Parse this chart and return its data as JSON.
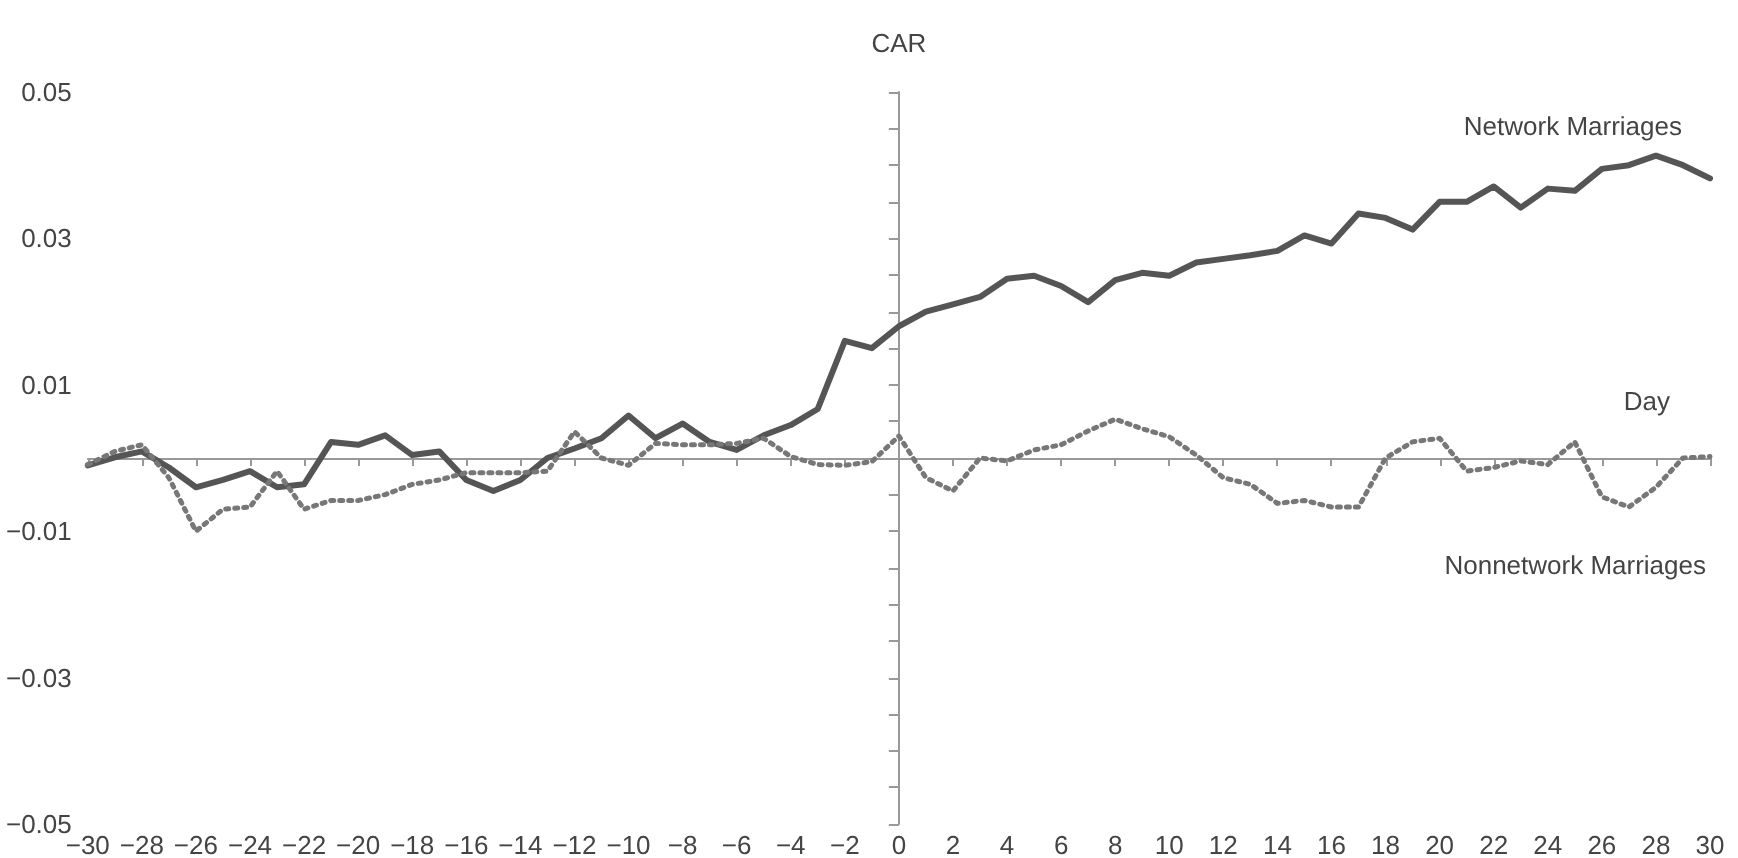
{
  "chart_data": {
    "type": "line",
    "xlabel": "Day",
    "ylabel": "CAR",
    "x": [
      -30,
      -29,
      -28,
      -27,
      -26,
      -25,
      -24,
      -23,
      -22,
      -21,
      -20,
      -19,
      -18,
      -17,
      -16,
      -15,
      -14,
      -13,
      -12,
      -11,
      -10,
      -9,
      -8,
      -7,
      -6,
      -5,
      -4,
      -3,
      -2,
      -1,
      0,
      1,
      2,
      3,
      4,
      5,
      6,
      7,
      8,
      9,
      10,
      11,
      12,
      13,
      14,
      15,
      16,
      17,
      18,
      19,
      20,
      21,
      22,
      23,
      24,
      25,
      26,
      27,
      28,
      29,
      30
    ],
    "series": [
      {
        "name": "Network Marriages",
        "color": "#555555",
        "line_style": "solid",
        "values": [
          -0.001,
          0.0001,
          0.0009,
          -0.0013,
          -0.004,
          -0.003,
          -0.0018,
          -0.004,
          -0.0036,
          0.0022,
          0.0018,
          0.0031,
          0.0004,
          0.0009,
          -0.003,
          -0.0045,
          -0.003,
          0,
          0.0013,
          0.0027,
          0.0058,
          0.0027,
          0.0047,
          0.0022,
          0.0011,
          0.0031,
          0.0045,
          0.0067,
          0.016,
          0.015,
          0.018,
          0.02,
          0.021,
          0.022,
          0.0245,
          0.0249,
          0.0235,
          0.0213,
          0.0243,
          0.0253,
          0.0249,
          0.0267,
          0.0272,
          0.0277,
          0.0283,
          0.0304,
          0.0293,
          0.0334,
          0.0328,
          0.0312,
          0.035,
          0.035,
          0.0371,
          0.0342,
          0.0368,
          0.0365,
          0.0395,
          0.04,
          0.0413,
          0.04,
          0.0382
        ]
      },
      {
        "name": "Nonnetwork Marriages",
        "color": "#777777",
        "line_style": "dotted",
        "values": [
          -0.0009,
          0.0009,
          0.0018,
          -0.0027,
          -0.01,
          -0.007,
          -0.0067,
          -0.0018,
          -0.007,
          -0.0058,
          -0.0058,
          -0.005,
          -0.0036,
          -0.003,
          -0.002,
          -0.002,
          -0.002,
          -0.0018,
          0.0036,
          0,
          -0.001,
          0.002,
          0.0018,
          0.0018,
          0.002,
          0.0027,
          0.0002,
          -0.0009,
          -0.001,
          -0.0005,
          0.003,
          -0.0027,
          -0.0045,
          0,
          -0.0004,
          0.0011,
          0.0018,
          0.0037,
          0.0053,
          0.004,
          0.0029,
          0.0004,
          -0.0027,
          -0.0036,
          -0.0062,
          -0.0058,
          -0.0067,
          -0.0067,
          0,
          0.0022,
          0.0027,
          -0.0018,
          -0.0013,
          -0.0004,
          -0.0009,
          0.0022,
          -0.0053,
          -0.0067,
          -0.004,
          0,
          0.0002
        ]
      }
    ],
    "xlim": [
      -30,
      30
    ],
    "xticks": [
      -30,
      -28,
      -26,
      -24,
      -22,
      -20,
      -18,
      -16,
      -14,
      -12,
      -10,
      -8,
      -6,
      -4,
      -2,
      0,
      2,
      4,
      6,
      8,
      10,
      12,
      14,
      16,
      18,
      20,
      22,
      24,
      26,
      28,
      30
    ],
    "ylim": [
      -0.05,
      0.05
    ],
    "yticks": [
      -0.05,
      {
        "value": -0.045,
        "label": null
      },
      {
        "value": -0.04,
        "label": null
      },
      {
        "value": -0.035,
        "label": null
      },
      -0.03,
      {
        "value": -0.025,
        "label": null
      },
      {
        "value": -0.02,
        "label": null
      },
      {
        "value": -0.015,
        "label": null
      },
      -0.01,
      {
        "value": -0.005,
        "label": null
      },
      {
        "value": 0,
        "label": null
      },
      {
        "value": 0.005,
        "label": null
      },
      0.01,
      {
        "value": 0.015,
        "label": null
      },
      {
        "value": 0.02,
        "label": null
      },
      {
        "value": 0.025,
        "label": null
      },
      0.03,
      {
        "value": 0.035,
        "label": null
      },
      {
        "value": 0.04,
        "label": null
      },
      {
        "value": 0.045,
        "label": null
      },
      0.05
    ],
    "legend": false,
    "marker": "none"
  }
}
